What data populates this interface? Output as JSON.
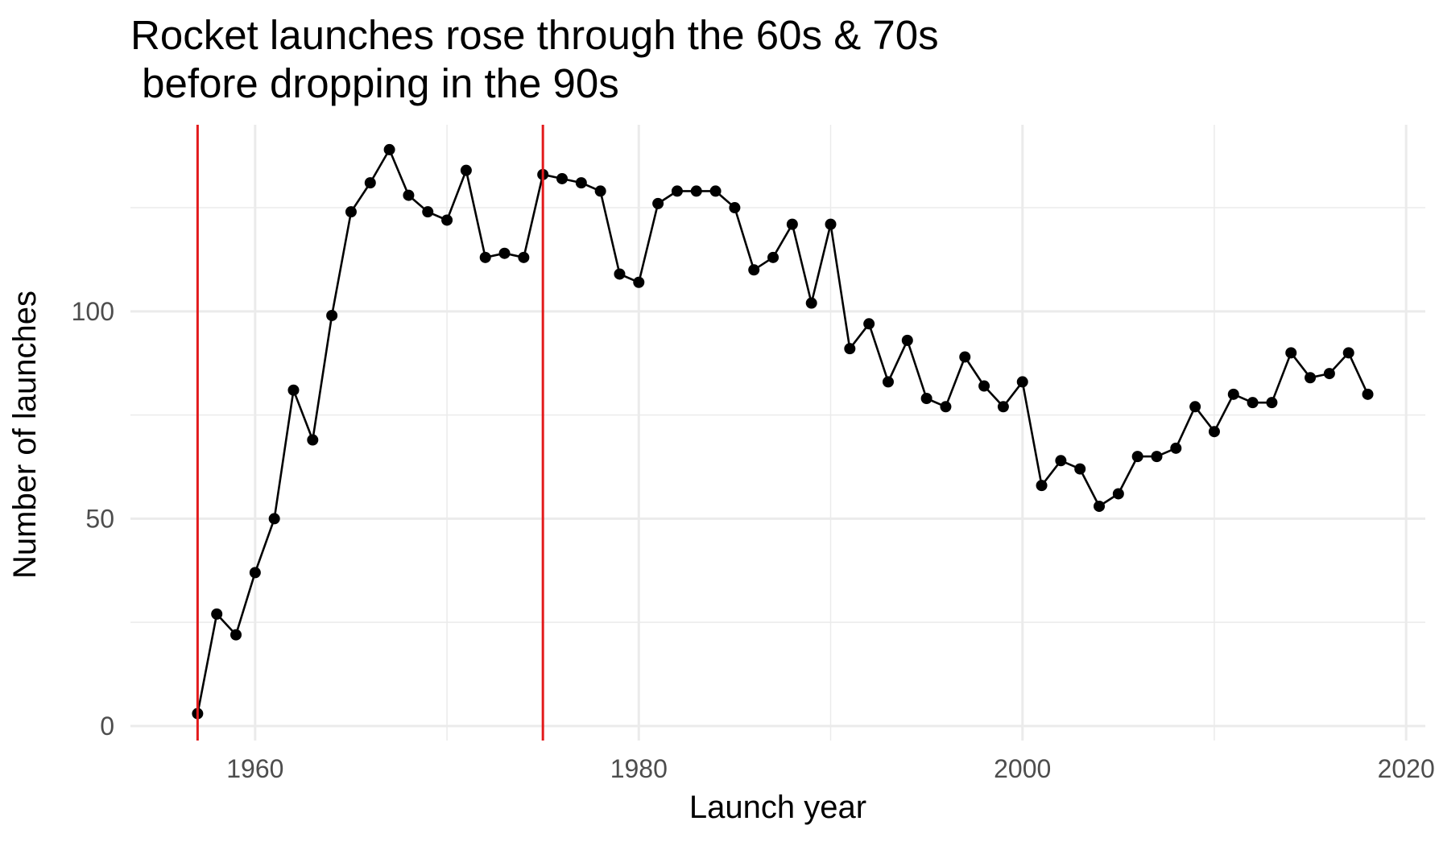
{
  "chart_data": {
    "type": "line",
    "title_lines": [
      "Rocket launches rose through the 60s & 70s",
      " before dropping in the 90s"
    ],
    "xlabel": "Launch year",
    "ylabel": "Number of launches",
    "xlim": [
      1953.5,
      2021
    ],
    "ylim": [
      -3.5,
      145
    ],
    "x_ticks": [
      1960,
      1980,
      2000,
      2020
    ],
    "y_ticks": [
      0,
      50,
      100
    ],
    "grid": true,
    "legend": "none",
    "colors": {
      "line": "#000000",
      "marker": "#000000",
      "vline": "#e31a1c",
      "grid": "#ebebeb",
      "tick_label": "#4d4d4d"
    },
    "vlines": [
      1957,
      1975
    ],
    "series": [
      {
        "x": [
          1957,
          1958,
          1959,
          1960,
          1961,
          1962,
          1963,
          1964,
          1965,
          1966,
          1967,
          1968,
          1969,
          1970,
          1971,
          1972,
          1973,
          1974,
          1975,
          1976,
          1977,
          1978,
          1979,
          1980,
          1981,
          1982,
          1983,
          1984,
          1985,
          1986,
          1987,
          1988,
          1989,
          1990,
          1991,
          1992,
          1993,
          1994,
          1995,
          1996,
          1997,
          1998,
          1999,
          2000,
          2001,
          2002,
          2003,
          2004,
          2005,
          2006,
          2007,
          2008,
          2009,
          2010,
          2011,
          2012,
          2013,
          2014,
          2015,
          2016,
          2017,
          2018
        ],
        "y": [
          3,
          27,
          22,
          37,
          50,
          81,
          69,
          99,
          124,
          131,
          139,
          128,
          124,
          122,
          134,
          113,
          114,
          113,
          133,
          132,
          131,
          129,
          109,
          107,
          126,
          129,
          129,
          129,
          125,
          110,
          113,
          121,
          102,
          121,
          91,
          97,
          83,
          93,
          79,
          77,
          89,
          82,
          77,
          83,
          58,
          64,
          62,
          53,
          56,
          65,
          65,
          67,
          77,
          71,
          80,
          78,
          78,
          90,
          84,
          85,
          90,
          80
        ]
      }
    ]
  }
}
